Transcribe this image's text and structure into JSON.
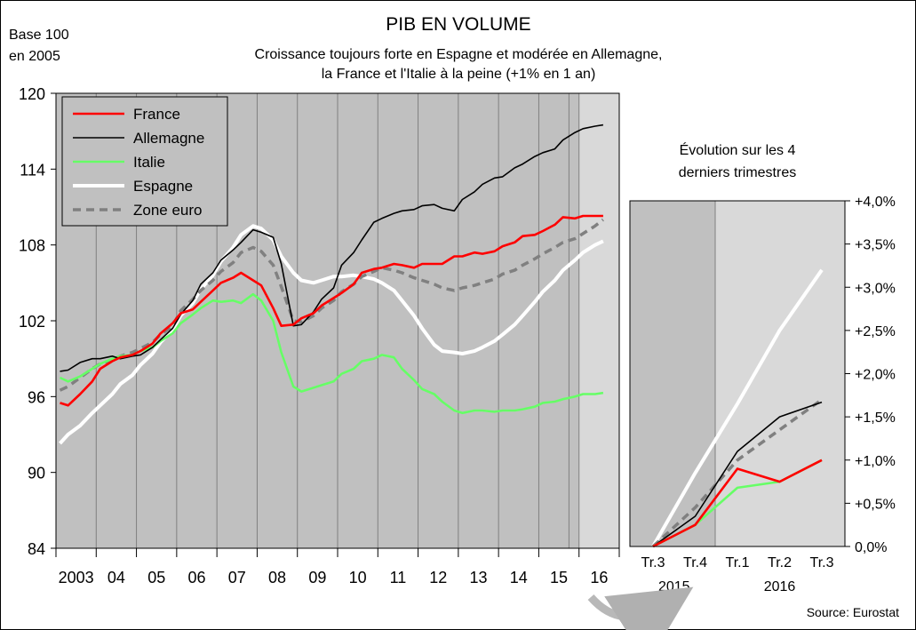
{
  "chart_data": [
    {
      "type": "line",
      "title": "PIB EN VOLUME",
      "subtitle_line1": "Croissance toujours forte en Espagne et modérée en Allemagne,",
      "subtitle_line2": "la France et l'Italie à la peine (+1% en 1 an)",
      "ylabel_line1": "Base 100",
      "ylabel_line2": "en 2005",
      "ylim": [
        84,
        120
      ],
      "yticks": [
        84,
        90,
        96,
        102,
        108,
        114,
        120
      ],
      "xlim": [
        2003.0,
        2017.0
      ],
      "x_tick_labels": [
        {
          "label": "2003",
          "x": 2003.5
        },
        {
          "label": "04",
          "x": 2004.5
        },
        {
          "label": "05",
          "x": 2005.5
        },
        {
          "label": "06",
          "x": 2006.5
        },
        {
          "label": "07",
          "x": 2007.5
        },
        {
          "label": "08",
          "x": 2008.5
        },
        {
          "label": "09",
          "x": 2009.5
        },
        {
          "label": "10",
          "x": 2010.5
        },
        {
          "label": "11",
          "x": 2011.5
        },
        {
          "label": "12",
          "x": 2012.5
        },
        {
          "label": "13",
          "x": 2013.5
        },
        {
          "label": "14",
          "x": 2014.5
        },
        {
          "label": "15",
          "x": 2015.5
        },
        {
          "label": "16",
          "x": 2016.5
        }
      ],
      "grid": true,
      "legend_position": "top-left",
      "series": [
        {
          "name": "France",
          "color": "#ff0000",
          "style": "solid",
          "x": [
            2003.1,
            2003.3,
            2003.6,
            2003.9,
            2004.1,
            2004.4,
            2004.6,
            2004.9,
            2005.1,
            2005.4,
            2005.6,
            2005.9,
            2006.1,
            2006.4,
            2006.6,
            2006.9,
            2007.1,
            2007.4,
            2007.6,
            2007.9,
            2008.1,
            2008.4,
            2008.6,
            2008.9,
            2009.1,
            2009.4,
            2009.6,
            2009.9,
            2010.1,
            2010.4,
            2010.6,
            2010.9,
            2011.1,
            2011.4,
            2011.6,
            2011.9,
            2012.1,
            2012.4,
            2012.6,
            2012.9,
            2013.1,
            2013.4,
            2013.6,
            2013.9,
            2014.1,
            2014.4,
            2014.6,
            2014.9,
            2015.1,
            2015.4,
            2015.6,
            2015.9,
            2016.1,
            2016.4,
            2016.6
          ],
          "y": [
            95.5,
            95.3,
            96.2,
            97.2,
            98.2,
            98.8,
            99.1,
            99.3,
            99.6,
            100.2,
            101.0,
            101.8,
            102.6,
            102.9,
            103.5,
            104.4,
            105.0,
            105.4,
            105.8,
            105.2,
            104.8,
            103.0,
            101.6,
            101.7,
            102.2,
            102.6,
            103.2,
            103.8,
            104.2,
            104.9,
            105.8,
            106.1,
            106.2,
            106.5,
            106.4,
            106.2,
            106.5,
            106.5,
            106.5,
            107.1,
            107.1,
            107.4,
            107.3,
            107.5,
            107.9,
            108.2,
            108.7,
            108.8,
            109.1,
            109.6,
            110.2,
            110.1,
            110.3,
            110.3,
            110.3
          ]
        },
        {
          "name": "Allemagne",
          "color": "#000000",
          "style": "solid",
          "x": [
            2003.1,
            2003.3,
            2003.6,
            2003.9,
            2004.1,
            2004.4,
            2004.6,
            2004.9,
            2005.1,
            2005.4,
            2005.6,
            2005.9,
            2006.1,
            2006.4,
            2006.6,
            2006.9,
            2007.1,
            2007.4,
            2007.6,
            2007.9,
            2008.1,
            2008.4,
            2008.6,
            2008.9,
            2009.1,
            2009.4,
            2009.6,
            2009.9,
            2010.1,
            2010.4,
            2010.6,
            2010.9,
            2011.1,
            2011.4,
            2011.6,
            2011.9,
            2012.1,
            2012.4,
            2012.6,
            2012.9,
            2013.1,
            2013.4,
            2013.6,
            2013.9,
            2014.1,
            2014.4,
            2014.6,
            2014.9,
            2015.1,
            2015.4,
            2015.6,
            2015.9,
            2016.1,
            2016.4,
            2016.6
          ],
          "y": [
            98.0,
            98.1,
            98.7,
            99.0,
            99.0,
            99.2,
            99.0,
            99.2,
            99.3,
            99.9,
            100.5,
            101.4,
            102.5,
            103.6,
            104.9,
            105.8,
            106.8,
            107.6,
            108.2,
            109.2,
            109.0,
            108.6,
            106.5,
            101.6,
            101.7,
            102.7,
            103.7,
            104.6,
            106.4,
            107.4,
            108.4,
            109.8,
            110.1,
            110.5,
            110.7,
            110.8,
            111.1,
            111.2,
            110.9,
            110.7,
            111.6,
            112.2,
            112.8,
            113.3,
            113.4,
            114.1,
            114.4,
            115.0,
            115.3,
            115.6,
            116.3,
            116.9,
            117.2,
            117.4,
            117.5
          ]
        },
        {
          "name": "Italie",
          "color": "#66ff66",
          "style": "solid",
          "x": [
            2003.1,
            2003.3,
            2003.6,
            2003.9,
            2004.1,
            2004.4,
            2004.6,
            2004.9,
            2005.1,
            2005.4,
            2005.6,
            2005.9,
            2006.1,
            2006.4,
            2006.6,
            2006.9,
            2007.1,
            2007.4,
            2007.6,
            2007.9,
            2008.1,
            2008.4,
            2008.6,
            2008.9,
            2009.1,
            2009.4,
            2009.6,
            2009.9,
            2010.1,
            2010.4,
            2010.6,
            2010.9,
            2011.1,
            2011.4,
            2011.6,
            2011.9,
            2012.1,
            2012.4,
            2012.6,
            2012.9,
            2013.1,
            2013.4,
            2013.6,
            2013.9,
            2014.1,
            2014.4,
            2014.6,
            2014.9,
            2015.1,
            2015.4,
            2015.6,
            2015.9,
            2016.1,
            2016.4,
            2016.6
          ],
          "y": [
            97.5,
            97.2,
            97.6,
            98.2,
            98.6,
            99.0,
            99.2,
            99.3,
            99.6,
            99.9,
            100.4,
            101.0,
            101.8,
            102.5,
            103.0,
            103.6,
            103.5,
            103.6,
            103.4,
            104.1,
            103.6,
            102.0,
            99.5,
            96.8,
            96.4,
            96.7,
            96.9,
            97.2,
            97.8,
            98.2,
            98.8,
            99.0,
            99.3,
            99.1,
            98.2,
            97.3,
            96.6,
            96.2,
            95.6,
            94.9,
            94.7,
            94.9,
            94.9,
            94.8,
            94.9,
            94.9,
            95.0,
            95.2,
            95.5,
            95.6,
            95.8,
            96.0,
            96.2,
            96.2,
            96.3
          ]
        },
        {
          "name": "Espagne",
          "color": "#ffffff",
          "style": "solid",
          "x": [
            2003.1,
            2003.3,
            2003.6,
            2003.9,
            2004.1,
            2004.4,
            2004.6,
            2004.9,
            2005.1,
            2005.4,
            2005.6,
            2005.9,
            2006.1,
            2006.4,
            2006.6,
            2006.9,
            2007.1,
            2007.4,
            2007.6,
            2007.9,
            2008.1,
            2008.4,
            2008.6,
            2008.9,
            2009.1,
            2009.4,
            2009.6,
            2009.9,
            2010.1,
            2010.4,
            2010.6,
            2010.9,
            2011.1,
            2011.4,
            2011.6,
            2011.9,
            2012.1,
            2012.4,
            2012.6,
            2012.9,
            2013.1,
            2013.4,
            2013.6,
            2013.9,
            2014.1,
            2014.4,
            2014.6,
            2014.9,
            2015.1,
            2015.4,
            2015.6,
            2015.9,
            2016.1,
            2016.4,
            2016.6
          ],
          "y": [
            92.3,
            93.0,
            93.7,
            94.7,
            95.3,
            96.2,
            97.0,
            97.7,
            98.5,
            99.4,
            100.3,
            101.3,
            102.4,
            103.4,
            104.5,
            105.6,
            106.7,
            107.8,
            108.8,
            109.5,
            109.3,
            108.4,
            107.1,
            105.8,
            105.2,
            105.0,
            105.2,
            105.5,
            105.5,
            105.6,
            105.5,
            105.3,
            105.0,
            104.4,
            103.6,
            102.4,
            101.4,
            100.1,
            99.6,
            99.5,
            99.4,
            99.6,
            99.9,
            100.4,
            100.9,
            101.7,
            102.4,
            103.5,
            104.3,
            105.2,
            106.0,
            106.8,
            107.4,
            108.0,
            108.3
          ]
        },
        {
          "name": "Zone euro",
          "color": "#808080",
          "style": "dashed",
          "x": [
            2003.1,
            2003.3,
            2003.6,
            2003.9,
            2004.1,
            2004.4,
            2004.6,
            2004.9,
            2005.1,
            2005.4,
            2005.6,
            2005.9,
            2006.1,
            2006.4,
            2006.6,
            2006.9,
            2007.1,
            2007.4,
            2007.6,
            2007.9,
            2008.1,
            2008.4,
            2008.6,
            2008.9,
            2009.1,
            2009.4,
            2009.6,
            2009.9,
            2010.1,
            2010.4,
            2010.6,
            2010.9,
            2011.1,
            2011.4,
            2011.6,
            2011.9,
            2012.1,
            2012.4,
            2012.6,
            2012.9,
            2013.1,
            2013.4,
            2013.6,
            2013.9,
            2014.1,
            2014.4,
            2014.6,
            2014.9,
            2015.1,
            2015.4,
            2015.6,
            2015.9,
            2016.1,
            2016.4,
            2016.6
          ],
          "y": [
            96.5,
            96.8,
            97.5,
            98.2,
            98.6,
            98.9,
            99.2,
            99.5,
            99.8,
            100.3,
            100.9,
            101.6,
            102.8,
            103.7,
            104.4,
            105.2,
            105.9,
            106.6,
            107.4,
            107.8,
            107.5,
            106.4,
            104.7,
            102.0,
            101.9,
            102.4,
            103.0,
            103.6,
            104.3,
            104.9,
            105.5,
            105.9,
            106.2,
            106.0,
            105.8,
            105.4,
            105.2,
            104.9,
            104.6,
            104.4,
            104.6,
            104.8,
            105.0,
            105.3,
            105.7,
            106.0,
            106.4,
            106.9,
            107.3,
            107.8,
            108.2,
            108.5,
            108.9,
            109.5,
            110.0
          ]
        }
      ]
    },
    {
      "type": "line",
      "title_line1": "Évolution sur les 4",
      "title_line2": "derniers trimestres",
      "ylim": [
        0,
        4.0
      ],
      "ytick_labels": [
        "0,0%",
        "+0,5%",
        "+1,0%",
        "+1,5%",
        "+2,0%",
        "+2,5%",
        "+3,0%",
        "+3,5%",
        "+4,0%"
      ],
      "categories": [
        "Tr.3",
        "Tr.4",
        "Tr.1",
        "Tr.2",
        "Tr.3"
      ],
      "year_labels": [
        {
          "label": "2015",
          "category_index": 0.5
        },
        {
          "label": "2016",
          "category_index": 3
        }
      ],
      "grid": true,
      "series": [
        {
          "name": "France",
          "color": "#ff0000",
          "style": "solid",
          "values": [
            0.0,
            0.25,
            0.9,
            0.75,
            1.0
          ]
        },
        {
          "name": "Allemagne",
          "color": "#000000",
          "style": "solid",
          "values": [
            0.0,
            0.35,
            1.1,
            1.5,
            1.67
          ]
        },
        {
          "name": "Italie",
          "color": "#66ff66",
          "style": "solid",
          "values": [
            0.0,
            0.25,
            0.68,
            0.75,
            1.0
          ]
        },
        {
          "name": "Espagne",
          "color": "#ffffff",
          "style": "solid",
          "values": [
            0.0,
            0.85,
            1.65,
            2.5,
            3.2
          ]
        },
        {
          "name": "Zone euro",
          "color": "#808080",
          "style": "dashed",
          "values": [
            0.0,
            0.45,
            1.0,
            1.35,
            1.7
          ]
        }
      ]
    }
  ],
  "source": "Source: Eurostat"
}
